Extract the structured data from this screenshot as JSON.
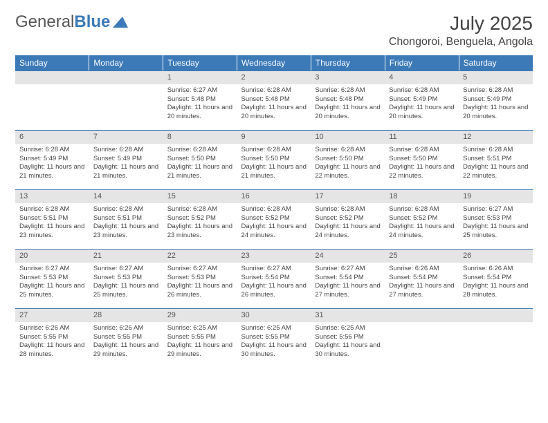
{
  "logo": {
    "text1": "General",
    "text2": "Blue"
  },
  "title": "July 2025",
  "location": "Chongoroi, Benguela, Angola",
  "colors": {
    "header_bg": "#3b79b7",
    "daynum_bg": "#e5e5e5",
    "border": "#3b79b7"
  },
  "weekdays": [
    "Sunday",
    "Monday",
    "Tuesday",
    "Wednesday",
    "Thursday",
    "Friday",
    "Saturday"
  ],
  "weeks": [
    [
      null,
      null,
      {
        "n": "1",
        "sr": "Sunrise: 6:27 AM",
        "ss": "Sunset: 5:48 PM",
        "dl": "Daylight: 11 hours and 20 minutes."
      },
      {
        "n": "2",
        "sr": "Sunrise: 6:28 AM",
        "ss": "Sunset: 5:48 PM",
        "dl": "Daylight: 11 hours and 20 minutes."
      },
      {
        "n": "3",
        "sr": "Sunrise: 6:28 AM",
        "ss": "Sunset: 5:48 PM",
        "dl": "Daylight: 11 hours and 20 minutes."
      },
      {
        "n": "4",
        "sr": "Sunrise: 6:28 AM",
        "ss": "Sunset: 5:49 PM",
        "dl": "Daylight: 11 hours and 20 minutes."
      },
      {
        "n": "5",
        "sr": "Sunrise: 6:28 AM",
        "ss": "Sunset: 5:49 PM",
        "dl": "Daylight: 11 hours and 20 minutes."
      }
    ],
    [
      {
        "n": "6",
        "sr": "Sunrise: 6:28 AM",
        "ss": "Sunset: 5:49 PM",
        "dl": "Daylight: 11 hours and 21 minutes."
      },
      {
        "n": "7",
        "sr": "Sunrise: 6:28 AM",
        "ss": "Sunset: 5:49 PM",
        "dl": "Daylight: 11 hours and 21 minutes."
      },
      {
        "n": "8",
        "sr": "Sunrise: 6:28 AM",
        "ss": "Sunset: 5:50 PM",
        "dl": "Daylight: 11 hours and 21 minutes."
      },
      {
        "n": "9",
        "sr": "Sunrise: 6:28 AM",
        "ss": "Sunset: 5:50 PM",
        "dl": "Daylight: 11 hours and 21 minutes."
      },
      {
        "n": "10",
        "sr": "Sunrise: 6:28 AM",
        "ss": "Sunset: 5:50 PM",
        "dl": "Daylight: 11 hours and 22 minutes."
      },
      {
        "n": "11",
        "sr": "Sunrise: 6:28 AM",
        "ss": "Sunset: 5:50 PM",
        "dl": "Daylight: 11 hours and 22 minutes."
      },
      {
        "n": "12",
        "sr": "Sunrise: 6:28 AM",
        "ss": "Sunset: 5:51 PM",
        "dl": "Daylight: 11 hours and 22 minutes."
      }
    ],
    [
      {
        "n": "13",
        "sr": "Sunrise: 6:28 AM",
        "ss": "Sunset: 5:51 PM",
        "dl": "Daylight: 11 hours and 23 minutes."
      },
      {
        "n": "14",
        "sr": "Sunrise: 6:28 AM",
        "ss": "Sunset: 5:51 PM",
        "dl": "Daylight: 11 hours and 23 minutes."
      },
      {
        "n": "15",
        "sr": "Sunrise: 6:28 AM",
        "ss": "Sunset: 5:52 PM",
        "dl": "Daylight: 11 hours and 23 minutes."
      },
      {
        "n": "16",
        "sr": "Sunrise: 6:28 AM",
        "ss": "Sunset: 5:52 PM",
        "dl": "Daylight: 11 hours and 24 minutes."
      },
      {
        "n": "17",
        "sr": "Sunrise: 6:28 AM",
        "ss": "Sunset: 5:52 PM",
        "dl": "Daylight: 11 hours and 24 minutes."
      },
      {
        "n": "18",
        "sr": "Sunrise: 6:28 AM",
        "ss": "Sunset: 5:52 PM",
        "dl": "Daylight: 11 hours and 24 minutes."
      },
      {
        "n": "19",
        "sr": "Sunrise: 6:27 AM",
        "ss": "Sunset: 5:53 PM",
        "dl": "Daylight: 11 hours and 25 minutes."
      }
    ],
    [
      {
        "n": "20",
        "sr": "Sunrise: 6:27 AM",
        "ss": "Sunset: 5:53 PM",
        "dl": "Daylight: 11 hours and 25 minutes."
      },
      {
        "n": "21",
        "sr": "Sunrise: 6:27 AM",
        "ss": "Sunset: 5:53 PM",
        "dl": "Daylight: 11 hours and 25 minutes."
      },
      {
        "n": "22",
        "sr": "Sunrise: 6:27 AM",
        "ss": "Sunset: 5:53 PM",
        "dl": "Daylight: 11 hours and 26 minutes."
      },
      {
        "n": "23",
        "sr": "Sunrise: 6:27 AM",
        "ss": "Sunset: 5:54 PM",
        "dl": "Daylight: 11 hours and 26 minutes."
      },
      {
        "n": "24",
        "sr": "Sunrise: 6:27 AM",
        "ss": "Sunset: 5:54 PM",
        "dl": "Daylight: 11 hours and 27 minutes."
      },
      {
        "n": "25",
        "sr": "Sunrise: 6:26 AM",
        "ss": "Sunset: 5:54 PM",
        "dl": "Daylight: 11 hours and 27 minutes."
      },
      {
        "n": "26",
        "sr": "Sunrise: 6:26 AM",
        "ss": "Sunset: 5:54 PM",
        "dl": "Daylight: 11 hours and 28 minutes."
      }
    ],
    [
      {
        "n": "27",
        "sr": "Sunrise: 6:26 AM",
        "ss": "Sunset: 5:55 PM",
        "dl": "Daylight: 11 hours and 28 minutes."
      },
      {
        "n": "28",
        "sr": "Sunrise: 6:26 AM",
        "ss": "Sunset: 5:55 PM",
        "dl": "Daylight: 11 hours and 29 minutes."
      },
      {
        "n": "29",
        "sr": "Sunrise: 6:25 AM",
        "ss": "Sunset: 5:55 PM",
        "dl": "Daylight: 11 hours and 29 minutes."
      },
      {
        "n": "30",
        "sr": "Sunrise: 6:25 AM",
        "ss": "Sunset: 5:55 PM",
        "dl": "Daylight: 11 hours and 30 minutes."
      },
      {
        "n": "31",
        "sr": "Sunrise: 6:25 AM",
        "ss": "Sunset: 5:56 PM",
        "dl": "Daylight: 11 hours and 30 minutes."
      },
      null,
      null
    ]
  ]
}
